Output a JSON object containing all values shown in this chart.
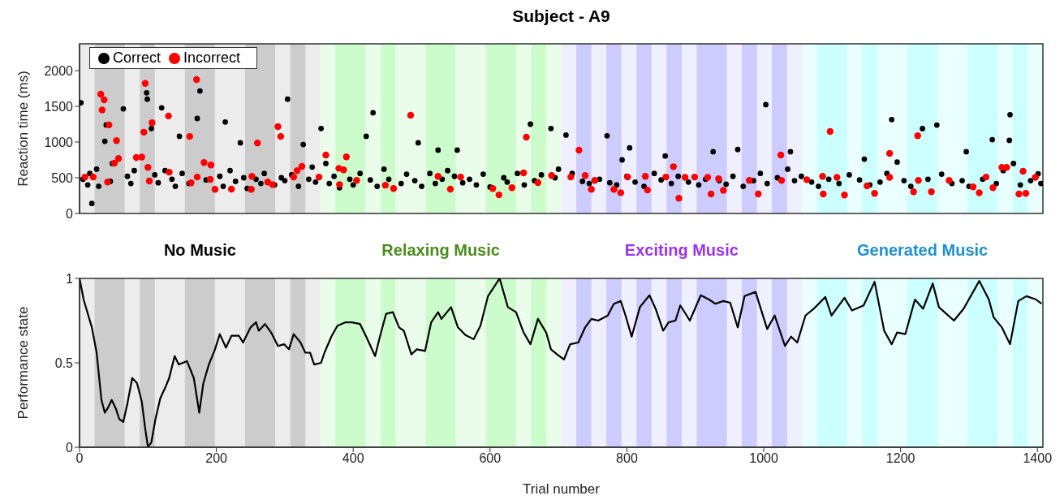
{
  "chart_data": [
    {
      "type": "scatter",
      "title": "Subject - A9",
      "ylabel": "Reaction time (ms)",
      "xlim": [
        0,
        1408
      ],
      "xticks": [
        0,
        200,
        400,
        600,
        800,
        1000,
        1200,
        1400
      ],
      "ylim": [
        0,
        2375
      ],
      "yticks": [
        0,
        500,
        1000,
        1500,
        2000
      ],
      "tick_labels": "y",
      "legend": "top left",
      "marker": "circle",
      "series": [
        {
          "name": "Correct",
          "color": "#000000",
          "x": [
            2,
            18,
            37,
            39,
            64,
            98,
            99,
            105,
            120,
            146,
            172,
            176,
            213,
            235,
            304,
            327,
            353,
            419,
            429,
            495,
            524,
            552,
            659,
            689,
            711,
            771,
            793,
            804,
            856,
            926,
            962,
            1003,
            1039,
            1147,
            1187,
            1232,
            1253,
            1296,
            1334,
            1359,
            1360,
            1401,
            5,
            12,
            15,
            25,
            28,
            45,
            48,
            70,
            75,
            80,
            110,
            115,
            125,
            135,
            140,
            150,
            160,
            185,
            205,
            210,
            220,
            228,
            240,
            245,
            258,
            265,
            270,
            285,
            295,
            300,
            310,
            320,
            335,
            340,
            345,
            360,
            365,
            372,
            380,
            395,
            400,
            410,
            425,
            435,
            445,
            452,
            470,
            478,
            490,
            500,
            512,
            520,
            530,
            538,
            548,
            560,
            570,
            580,
            590,
            600,
            620,
            625,
            640,
            650,
            665,
            675,
            695,
            700,
            720,
            735,
            745,
            760,
            775,
            785,
            800,
            812,
            825,
            840,
            850,
            865,
            875,
            890,
            905,
            915,
            935,
            945,
            955,
            970,
            985,
            995,
            1005,
            1020,
            1035,
            1045,
            1055,
            1070,
            1080,
            1095,
            1110,
            1125,
            1140,
            1155,
            1170,
            1180,
            1195,
            1205,
            1215,
            1240,
            1260,
            1275,
            1290,
            1300,
            1320,
            1340,
            1350,
            1365,
            1375,
            1390,
            1405
          ],
          "values": [
            1550,
            140,
            1010,
            1240,
            1465,
            1690,
            1600,
            1190,
            1480,
            1080,
            1330,
            1715,
            1280,
            990,
            1600,
            965,
            1190,
            1080,
            1410,
            990,
            887,
            887,
            1250,
            1190,
            1097,
            1087,
            750,
            919,
            805,
            865,
            896,
            1524,
            865,
            760,
            1315,
            1188,
            1238,
            865,
            1033,
            1024,
            1383,
            555,
            480,
            400,
            560,
            620,
            380,
            450,
            700,
            520,
            420,
            600,
            540,
            430,
            600,
            480,
            380,
            560,
            420,
            470,
            520,
            380,
            600,
            450,
            500,
            350,
            480,
            420,
            560,
            400,
            500,
            460,
            540,
            380,
            480,
            650,
            440,
            700,
            420,
            520,
            360,
            480,
            400,
            560,
            470,
            380,
            620,
            480,
            420,
            550,
            460,
            380,
            560,
            420,
            480,
            600,
            520,
            430,
            480,
            400,
            550,
            370,
            500,
            440,
            560,
            400,
            460,
            540,
            500,
            620,
            560,
            450,
            420,
            480,
            430,
            400,
            520,
            440,
            380,
            560,
            470,
            420,
            520,
            440,
            400,
            480,
            460,
            410,
            520,
            380,
            460,
            560,
            420,
            500,
            620,
            460,
            520,
            440,
            380,
            480,
            420,
            540,
            470,
            400,
            440,
            560,
            720,
            460,
            380,
            480,
            550,
            420,
            460,
            380,
            480,
            420,
            600,
            700,
            400,
            460,
            420
          ]
        },
        {
          "name": "Incorrect",
          "color": "#ff0000",
          "x": [
            31,
            36,
            33,
            43,
            54,
            57,
            51,
            41,
            8,
            20,
            83,
            91,
            96,
            94,
            106,
            100,
            102,
            130,
            131,
            161,
            171,
            182,
            192,
            191,
            198,
            163,
            172,
            222,
            251,
            252,
            260,
            290,
            294,
            275,
            282,
            318,
            325,
            313,
            360,
            350,
            379,
            386,
            390,
            380,
            405,
            447,
            459,
            484,
            524,
            542,
            557,
            604,
            613,
            632,
            649,
            653,
            670,
            690,
            730,
            718,
            739,
            748,
            753,
            781,
            791,
            801,
            827,
            830,
            857,
            868,
            876,
            885,
            899,
            918,
            923,
            934,
            941,
            979,
            992,
            1025,
            1026,
            1063,
            1086,
            1087,
            1097,
            1107,
            1118,
            1151,
            1162,
            1184,
            1184,
            1219,
            1225,
            1226,
            1245,
            1271,
            1306,
            1315,
            1325,
            1335,
            1348,
            1355,
            1379,
            1373,
            1383,
            1397
          ],
          "values": [
            1670,
            1590,
            1450,
            1240,
            1020,
            770,
            705,
            440,
            510,
            510,
            783,
            790,
            1820,
            1138,
            1270,
            646,
            455,
            1365,
            578,
            1078,
            1875,
            714,
            678,
            478,
            337,
            428,
            510,
            341,
            337,
            519,
            987,
            1215,
            1078,
            441,
            405,
            600,
            660,
            510,
            819,
            510,
            632,
            610,
            792,
            405,
            464,
            396,
            350,
            1375,
            519,
            341,
            510,
            350,
            260,
            360,
            569,
            1069,
            432,
            532,
            887,
            510,
            532,
            337,
            464,
            337,
            291,
            510,
            519,
            328,
            510,
            655,
            214,
            505,
            510,
            505,
            273,
            487,
            323,
            464,
            273,
            819,
            464,
            473,
            519,
            273,
            1147,
            505,
            259,
            387,
            282,
            505,
            842,
            305,
            1087,
            464,
            305,
            464,
            373,
            291,
            510,
            360,
            646,
            646,
            592,
            273,
            282,
            505
          ]
        }
      ],
      "bands": [
        {
          "axis": "x",
          "from": 0,
          "to": 352,
          "color": "#ececec"
        },
        {
          "axis": "x",
          "from": 22,
          "to": 66,
          "color": "#cccccc"
        },
        {
          "axis": "x",
          "from": 88,
          "to": 110,
          "color": "#cccccc"
        },
        {
          "axis": "x",
          "from": 154,
          "to": 198,
          "color": "#cccccc"
        },
        {
          "axis": "x",
          "from": 242,
          "to": 286,
          "color": "#cccccc"
        },
        {
          "axis": "x",
          "from": 308,
          "to": 330,
          "color": "#cccccc"
        },
        {
          "axis": "x",
          "from": 352,
          "to": 704,
          "color": "#eafdea"
        },
        {
          "axis": "x",
          "from": 374,
          "to": 418,
          "color": "#ccfccc"
        },
        {
          "axis": "x",
          "from": 440,
          "to": 462,
          "color": "#ccfccc"
        },
        {
          "axis": "x",
          "from": 506,
          "to": 550,
          "color": "#ccfccc"
        },
        {
          "axis": "x",
          "from": 594,
          "to": 638,
          "color": "#ccfccc"
        },
        {
          "axis": "x",
          "from": 660,
          "to": 682,
          "color": "#ccfccc"
        },
        {
          "axis": "x",
          "from": 704,
          "to": 1056,
          "color": "#efefff"
        },
        {
          "axis": "x",
          "from": 726,
          "to": 748,
          "color": "#ccccff"
        },
        {
          "axis": "x",
          "from": 770,
          "to": 792,
          "color": "#ccccff"
        },
        {
          "axis": "x",
          "from": 814,
          "to": 836,
          "color": "#ccccff"
        },
        {
          "axis": "x",
          "from": 858,
          "to": 880,
          "color": "#ccccff"
        },
        {
          "axis": "x",
          "from": 902,
          "to": 946,
          "color": "#ccccff"
        },
        {
          "axis": "x",
          "from": 968,
          "to": 990,
          "color": "#ccccff"
        },
        {
          "axis": "x",
          "from": 1012,
          "to": 1034,
          "color": "#ccccff"
        },
        {
          "axis": "x",
          "from": 1056,
          "to": 1408,
          "color": "#eaffff"
        },
        {
          "axis": "x",
          "from": 1078,
          "to": 1122,
          "color": "#ccffff"
        },
        {
          "axis": "x",
          "from": 1144,
          "to": 1166,
          "color": "#ccffff"
        },
        {
          "axis": "x",
          "from": 1210,
          "to": 1254,
          "color": "#ccffff"
        },
        {
          "axis": "x",
          "from": 1298,
          "to": 1342,
          "color": "#ccffff"
        },
        {
          "axis": "x",
          "from": 1364,
          "to": 1386,
          "color": "#ccffff"
        }
      ]
    },
    {
      "type": "line",
      "xlabel": "Trial number",
      "ylabel": "Performance state",
      "xlim": [
        0,
        1408
      ],
      "xticks": [
        0,
        200,
        400,
        600,
        800,
        1000,
        1200,
        1400
      ],
      "ylim": [
        0,
        1
      ],
      "yticks": [
        0,
        0.5,
        1
      ],
      "series": [
        {
          "color": "#000000",
          "x": [
            0,
            6,
            10,
            18,
            25,
            32,
            37,
            41,
            47,
            53,
            58,
            64,
            70,
            77,
            84,
            91,
            96,
            100,
            105,
            111,
            118,
            126,
            131,
            139,
            145,
            157,
            167,
            175,
            181,
            189,
            198,
            205,
            214,
            222,
            233,
            239,
            250,
            258,
            262,
            271,
            280,
            290,
            299,
            306,
            313,
            323,
            330,
            337,
            343,
            353,
            358,
            368,
            377,
            389,
            398,
            410,
            419,
            432,
            439,
            448,
            458,
            467,
            474,
            485,
            493,
            505,
            514,
            524,
            529,
            543,
            553,
            564,
            576,
            586,
            597,
            614,
            626,
            638,
            649,
            659,
            670,
            682,
            689,
            698,
            708,
            717,
            729,
            739,
            748,
            758,
            772,
            781,
            791,
            798,
            807,
            819,
            833,
            842,
            853,
            861,
            871,
            878,
            892,
            908,
            920,
            929,
            941,
            951,
            962,
            972,
            988,
            1005,
            1016,
            1031,
            1040,
            1049,
            1061,
            1073,
            1090,
            1099,
            1118,
            1129,
            1146,
            1162,
            1176,
            1187,
            1195,
            1207,
            1221,
            1233,
            1247,
            1256,
            1278,
            1292,
            1315,
            1329,
            1336,
            1348,
            1360,
            1372,
            1384,
            1398,
            1406
          ],
          "values": [
            1.0,
            0.875,
            0.82,
            0.71,
            0.56,
            0.28,
            0.205,
            0.23,
            0.28,
            0.23,
            0.167,
            0.15,
            0.26,
            0.41,
            0.38,
            0.27,
            0.11,
            0.0,
            0.03,
            0.167,
            0.29,
            0.36,
            0.41,
            0.54,
            0.49,
            0.51,
            0.41,
            0.205,
            0.38,
            0.49,
            0.58,
            0.67,
            0.59,
            0.66,
            0.66,
            0.62,
            0.71,
            0.74,
            0.69,
            0.73,
            0.68,
            0.6,
            0.61,
            0.58,
            0.67,
            0.62,
            0.56,
            0.56,
            0.49,
            0.5,
            0.56,
            0.655,
            0.72,
            0.74,
            0.74,
            0.73,
            0.655,
            0.54,
            0.655,
            0.79,
            0.8,
            0.71,
            0.69,
            0.55,
            0.58,
            0.57,
            0.74,
            0.8,
            0.76,
            0.83,
            0.71,
            0.665,
            0.64,
            0.72,
            0.895,
            1.0,
            0.83,
            0.8,
            0.68,
            0.61,
            0.76,
            0.68,
            0.58,
            0.55,
            0.52,
            0.61,
            0.62,
            0.71,
            0.76,
            0.75,
            0.78,
            0.85,
            0.866,
            0.78,
            0.655,
            0.83,
            0.9,
            0.82,
            0.69,
            0.74,
            0.75,
            0.84,
            0.75,
            0.9,
            0.875,
            0.85,
            0.866,
            0.856,
            0.71,
            0.895,
            0.92,
            0.7,
            0.78,
            0.6,
            0.655,
            0.62,
            0.78,
            0.82,
            0.89,
            0.78,
            0.885,
            0.81,
            0.84,
            0.98,
            0.69,
            0.61,
            0.68,
            0.67,
            0.875,
            0.82,
            0.97,
            0.83,
            0.75,
            0.82,
            0.985,
            0.875,
            0.77,
            0.71,
            0.61,
            0.866,
            0.895,
            0.875,
            0.85
          ]
        }
      ],
      "bands": [
        {
          "axis": "x",
          "from": 0,
          "to": 352,
          "color": "#ececec",
          "label": "No Music"
        },
        {
          "axis": "x",
          "from": 22,
          "to": 66,
          "color": "#cccccc"
        },
        {
          "axis": "x",
          "from": 88,
          "to": 110,
          "color": "#cccccc"
        },
        {
          "axis": "x",
          "from": 154,
          "to": 198,
          "color": "#cccccc"
        },
        {
          "axis": "x",
          "from": 242,
          "to": 286,
          "color": "#cccccc"
        },
        {
          "axis": "x",
          "from": 308,
          "to": 330,
          "color": "#cccccc"
        },
        {
          "axis": "x",
          "from": 352,
          "to": 704,
          "color": "#eafdea",
          "label": "Relaxing Music"
        },
        {
          "axis": "x",
          "from": 374,
          "to": 418,
          "color": "#ccfccc"
        },
        {
          "axis": "x",
          "from": 440,
          "to": 462,
          "color": "#ccfccc"
        },
        {
          "axis": "x",
          "from": 506,
          "to": 550,
          "color": "#ccfccc"
        },
        {
          "axis": "x",
          "from": 594,
          "to": 638,
          "color": "#ccfccc"
        },
        {
          "axis": "x",
          "from": 660,
          "to": 682,
          "color": "#ccfccc"
        },
        {
          "axis": "x",
          "from": 704,
          "to": 1056,
          "color": "#efefff",
          "label": "Exciting Music"
        },
        {
          "axis": "x",
          "from": 726,
          "to": 748,
          "color": "#ccccff"
        },
        {
          "axis": "x",
          "from": 770,
          "to": 792,
          "color": "#ccccff"
        },
        {
          "axis": "x",
          "from": 814,
          "to": 836,
          "color": "#ccccff"
        },
        {
          "axis": "x",
          "from": 858,
          "to": 880,
          "color": "#ccccff"
        },
        {
          "axis": "x",
          "from": 902,
          "to": 946,
          "color": "#ccccff"
        },
        {
          "axis": "x",
          "from": 968,
          "to": 990,
          "color": "#ccccff"
        },
        {
          "axis": "x",
          "from": 1012,
          "to": 1034,
          "color": "#ccccff"
        },
        {
          "axis": "x",
          "from": 1056,
          "to": 1408,
          "color": "#eaffff",
          "label": "Generated Music"
        },
        {
          "axis": "x",
          "from": 1078,
          "to": 1122,
          "color": "#ccffff"
        },
        {
          "axis": "x",
          "from": 1144,
          "to": 1166,
          "color": "#ccffff"
        },
        {
          "axis": "x",
          "from": 1210,
          "to": 1254,
          "color": "#ccffff"
        },
        {
          "axis": "x",
          "from": 1298,
          "to": 1342,
          "color": "#ccffff"
        },
        {
          "axis": "x",
          "from": 1364,
          "to": 1386,
          "color": "#ccffff"
        }
      ]
    }
  ]
}
